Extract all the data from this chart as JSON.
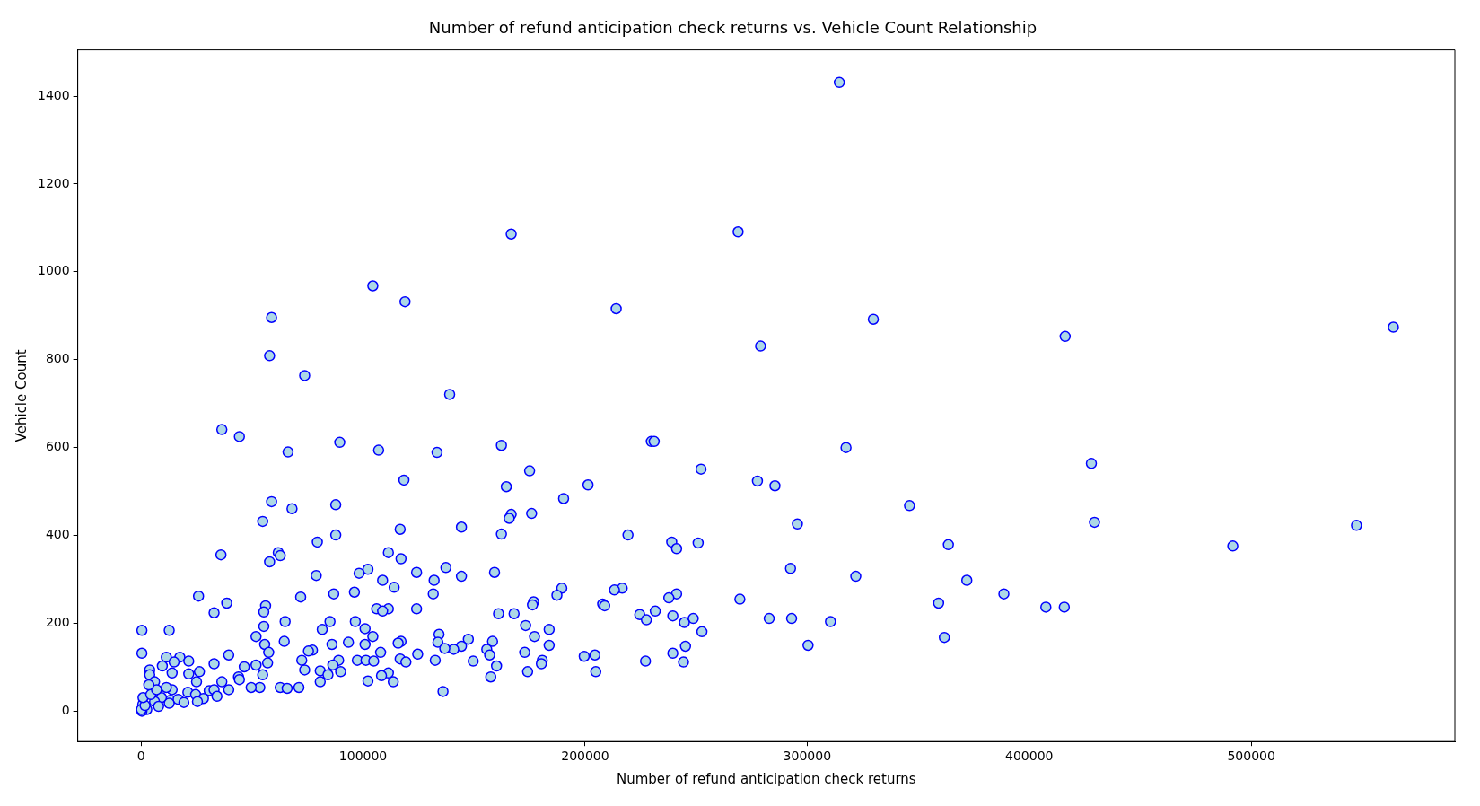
{
  "chart_data": {
    "type": "scatter",
    "title": "Number of refund anticipation check returns vs. Vehicle Count Relationship",
    "xlabel": "Number of refund anticipation check returns",
    "ylabel": "Vehicle Count",
    "xlim": [
      -28500,
      591700
    ],
    "xticks": [
      0,
      100000,
      200000,
      300000,
      400000,
      500000
    ],
    "ylim": [
      -69,
      1505
    ],
    "yticks": [
      0,
      200,
      400,
      600,
      800,
      1000,
      1200,
      1400
    ],
    "grid": false,
    "legend": false,
    "marker": "circle",
    "series": [
      {
        "color": "#add8e6",
        "x": [
          314500,
          166700,
          268900,
          104400,
          118900,
          214000,
          58800,
          329800,
          564000,
          416200,
          279000,
          57900,
          73700,
          139000,
          36400,
          44300,
          89500,
          229800,
          231100,
          107000,
          133300,
          162300,
          317500,
          66200,
          428000,
          252200,
          175000,
          118400,
          277600,
          285500,
          164500,
          201300,
          190300,
          58800,
          87700,
          68000,
          346100,
          175900,
          166700,
          165800,
          54800,
          295600,
          429400,
          547400,
          144300,
          116700,
          162300,
          87700,
          219300,
          239000,
          79400,
          250900,
          241200,
          363600,
          491700,
          61800,
          111400,
          36000,
          62700,
          117100,
          57900,
          137300,
          102200,
          98200,
          292500,
          159200,
          124100,
          78900,
          321900,
          144300,
          132000,
          108800,
          371900,
          114000,
          189500,
          216700,
          213200,
          187300,
          96100,
          86800,
          131600,
          241200,
          388600,
          25900,
          71900,
          237700,
          269700,
          176800,
          176300,
          207900,
          208800,
          359200,
          38600,
          407500,
          415800,
          111400,
          124100,
          106100,
          56100,
          55300,
          108800,
          32900,
          231600,
          161000,
          168000,
          224600,
          239500,
          227600,
          248700,
          282900,
          293000,
          310500,
          244700,
          64900,
          85100,
          96500,
          173200,
          55300,
          100900,
          81600,
          183800,
          12700,
          400,
          252600,
          134200,
          104400,
          177200,
          361800,
          147400,
          133700,
          158300,
          117100,
          51800,
          93400,
          55700,
          115800,
          86000,
          100900,
          183800,
          300400,
          64500,
          144300,
          245200,
          239500,
          400,
          172800,
          140800,
          136800,
          155700,
          107900,
          77200,
          75400,
          204400,
          199600,
          39500,
          124600,
          57500,
          157000,
          11400,
          17500,
          116700,
          132500,
          72400,
          97400,
          89000,
          101300,
          180700,
          227200,
          149600,
          21500,
          104800,
          119300,
          57000,
          32900,
          180300,
          244300,
          14900,
          51800,
          86400,
          160100,
          46500,
          9600,
          3900,
          73700,
          80700,
          89900,
          174100,
          204800,
          14000,
          26300,
          21500,
          84200,
          54800,
          111400,
          43900,
          3900,
          157500,
          108300,
          44300,
          102200,
          113600,
          80700,
          36400,
          6100,
          25000,
          53500,
          62700,
          65800,
          71100,
          49600,
          136000,
          39500,
          30700,
          32900,
          14000,
          21100,
          24600,
          34200,
          28100,
          25400,
          13200,
          16700,
          9200,
          6100,
          7900,
          2600,
          800,
          400,
          200,
          1800,
          900,
          4400,
          7000,
          12700,
          19300,
          11400,
          3500
        ],
        "values": [
          1431,
          1086,
          1091,
          968,
          932,
          916,
          896,
          892,
          874,
          853,
          831,
          809,
          764,
          721,
          641,
          625,
          612,
          614,
          614,
          594,
          589,
          605,
          600,
          590,
          564,
          551,
          547,
          526,
          524,
          513,
          511,
          515,
          484,
          477,
          470,
          461,
          468,
          450,
          448,
          439,
          432,
          426,
          430,
          423,
          419,
          414,
          403,
          401,
          401,
          385,
          385,
          383,
          370,
          379,
          376,
          361,
          361,
          356,
          354,
          347,
          340,
          327,
          323,
          314,
          325,
          316,
          316,
          309,
          307,
          307,
          298,
          298,
          298,
          282,
          280,
          280,
          276,
          264,
          271,
          267,
          267,
          267,
          267,
          262,
          260,
          258,
          255,
          249,
          242,
          244,
          240,
          246,
          246,
          237,
          237,
          233,
          233,
          233,
          240,
          226,
          228,
          224,
          228,
          222,
          222,
          220,
          217,
          208,
          211,
          211,
          211,
          204,
          202,
          204,
          204,
          204,
          195,
          193,
          188,
          186,
          186,
          184,
          184,
          181,
          175,
          170,
          170,
          168,
          164,
          157,
          159,
          159,
          170,
          157,
          152,
          155,
          152,
          152,
          150,
          150,
          159,
          148,
          148,
          132,
          132,
          134,
          141,
          143,
          141,
          134,
          139,
          137,
          128,
          125,
          128,
          130,
          134,
          128,
          123,
          123,
          119,
          116,
          116,
          116,
          116,
          116,
          116,
          114,
          114,
          114,
          114,
          112,
          110,
          108,
          108,
          112,
          112,
          105,
          105,
          103,
          101,
          103,
          94,
          94,
          92,
          90,
          90,
          90,
          87,
          90,
          85,
          83,
          83,
          87,
          78,
          83,
          78,
          81,
          72,
          69,
          67,
          67,
          67,
          67,
          67,
          54,
          54,
          52,
          54,
          54,
          45,
          49,
          47,
          49,
          49,
          43,
          38,
          34,
          29,
          22,
          25,
          27,
          31,
          22,
          11,
          4,
          16,
          0,
          4,
          13,
          31,
          38,
          49,
          18,
          20,
          54,
          60
        ]
      }
    ]
  }
}
